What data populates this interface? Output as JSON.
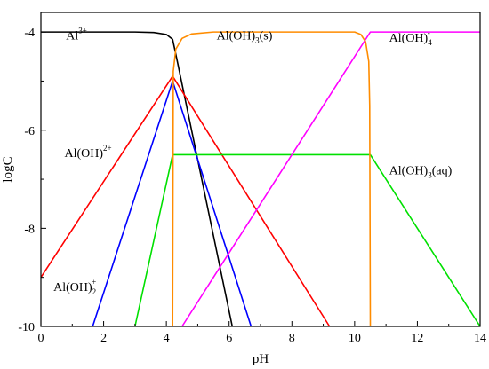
{
  "chart_data": {
    "type": "line",
    "xlabel": "pH",
    "ylabel": "logC",
    "xlim": [
      0,
      14
    ],
    "ylim": [
      -10,
      -3.6
    ],
    "xticks": [
      "0",
      "2",
      "4",
      "6",
      "8",
      "10",
      "12",
      "14"
    ],
    "yticks": [
      "-4",
      "-6",
      "-8",
      "-10"
    ],
    "xtick_values": [
      0,
      2,
      4,
      6,
      8,
      10,
      12,
      14
    ],
    "ytick_values": [
      -4,
      -6,
      -8,
      -10
    ],
    "grid": false,
    "series": [
      {
        "color": "#000000",
        "x": [
          0,
          3.0,
          3.6,
          4.0,
          4.2,
          4.35,
          6.1
        ],
        "y": [
          -4.0,
          -4.0,
          -4.01,
          -4.05,
          -4.15,
          -4.6,
          -10.0
        ]
      },
      {
        "color": "#ff0000",
        "x": [
          0,
          4.2,
          9.2
        ],
        "y": [
          -9.0,
          -4.9,
          -10.0
        ]
      },
      {
        "color": "#0000ff",
        "x": [
          1.65,
          4.2,
          6.7
        ],
        "y": [
          -10.0,
          -5.0,
          -10.0
        ]
      },
      {
        "color": "#00e000",
        "x": [
          3.0,
          4.2,
          10.5,
          14.0
        ],
        "y": [
          -10.0,
          -6.5,
          -6.5,
          -10.0
        ]
      },
      {
        "color": "#ff00ff",
        "x": [
          4.5,
          10.5,
          14.0
        ],
        "y": [
          -10.0,
          -4.0,
          -4.0
        ]
      },
      {
        "color": "#ff8c00",
        "x": [
          4.2,
          4.22,
          4.3,
          4.5,
          4.8,
          5.5,
          10.0,
          10.2,
          10.35,
          10.45,
          10.48,
          10.5
        ],
        "y": [
          -10.0,
          -4.8,
          -4.35,
          -4.13,
          -4.04,
          -4.0,
          -4.0,
          -4.05,
          -4.2,
          -4.6,
          -5.5,
          -10.0
        ]
      }
    ],
    "annotations": [
      {
        "base": "Al",
        "sub": "",
        "sup": "3+",
        "suffix": "",
        "x": 0.8,
        "y": -4.15
      },
      {
        "base": "Al(OH)",
        "sub": "3",
        "sup": "",
        "suffix": "(s)",
        "x": 5.6,
        "y": -4.15
      },
      {
        "base": "Al(OH)",
        "sub": "4",
        "sup": "-",
        "suffix": "",
        "x": 11.1,
        "y": -4.2
      },
      {
        "base": "Al(OH)",
        "sub": "",
        "sup": "2+",
        "suffix": "",
        "x": 0.75,
        "y": -6.55
      },
      {
        "base": "Al(OH)",
        "sub": "3",
        "sup": "",
        "suffix": "(aq)",
        "x": 11.1,
        "y": -6.9
      },
      {
        "base": "Al(OH)",
        "sub": "2",
        "sup": "+",
        "suffix": "",
        "x": 0.4,
        "y": -9.28
      }
    ]
  }
}
